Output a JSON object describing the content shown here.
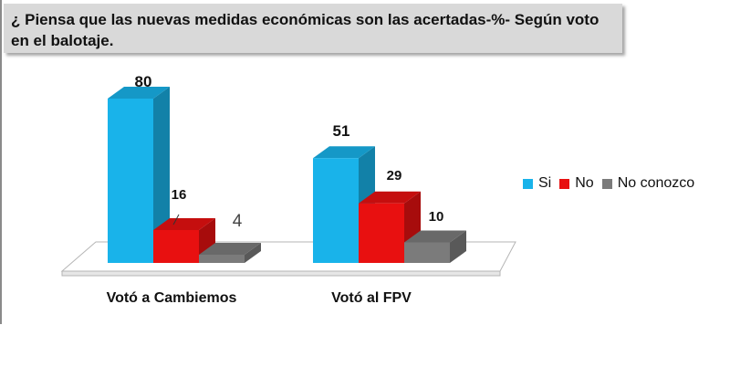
{
  "chart_data": {
    "type": "bar",
    "title": "¿ Piensa que las nuevas medidas económicas son las acertadas-%- Según voto en el balotaje.",
    "categories": [
      "Votó a Cambiemos",
      "Votó al FPV"
    ],
    "series": [
      {
        "name": "Si",
        "values": [
          80,
          51
        ],
        "color": "#19b3ea"
      },
      {
        "name": "No",
        "values": [
          16,
          29
        ],
        "color": "#e81010"
      },
      {
        "name": "No conozco",
        "values": [
          4,
          10
        ],
        "color": "#7b7b7b"
      }
    ],
    "data_labels": [
      [
        "80",
        "16",
        "4"
      ],
      [
        "51",
        "29",
        "10"
      ]
    ],
    "ylim": [
      0,
      80
    ],
    "grid": false,
    "legend": "right",
    "style": "3d"
  }
}
